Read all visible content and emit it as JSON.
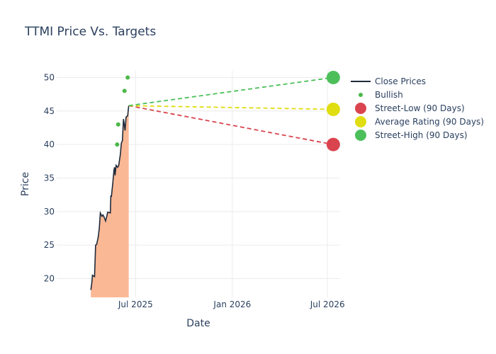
{
  "chart_data": {
    "type": "line",
    "title": "TTMI Price Vs. Targets",
    "xlabel": "Date",
    "ylabel": "Price",
    "x_range": [
      "2025-02-01",
      "2026-07-25"
    ],
    "y_range": [
      17.2,
      51
    ],
    "x_ticks": [
      {
        "label": "Jul 2025",
        "date": "2025-07-01"
      },
      {
        "label": "Jan 2026",
        "date": "2026-01-01"
      },
      {
        "label": "Jul 2026",
        "date": "2026-07-01"
      }
    ],
    "y_ticks": [
      20,
      25,
      30,
      35,
      40,
      45,
      50
    ],
    "grid": true,
    "legend_position": "right",
    "series": [
      {
        "name": "Close Prices",
        "kind": "line-area",
        "line_color": "#1f2a3a",
        "fill_color": "#fbb895",
        "points": [
          [
            "2025-04-07",
            18.3
          ],
          [
            "2025-04-09",
            19.5
          ],
          [
            "2025-04-10",
            20.5
          ],
          [
            "2025-04-14",
            20.3
          ],
          [
            "2025-04-16",
            25.0
          ],
          [
            "2025-04-18",
            25.1
          ],
          [
            "2025-04-21",
            26.2
          ],
          [
            "2025-04-23",
            27.5
          ],
          [
            "2025-04-25",
            29.8
          ],
          [
            "2025-04-28",
            29.3
          ],
          [
            "2025-04-30",
            29.5
          ],
          [
            "2025-05-02",
            29.2
          ],
          [
            "2025-05-05",
            28.6
          ],
          [
            "2025-05-07",
            29.2
          ],
          [
            "2025-05-09",
            29.9
          ],
          [
            "2025-05-14",
            29.8
          ],
          [
            "2025-05-15",
            32.4
          ],
          [
            "2025-05-16",
            32.2
          ],
          [
            "2025-05-19",
            34.5
          ],
          [
            "2025-05-21",
            36.2
          ],
          [
            "2025-05-22",
            36.6
          ],
          [
            "2025-05-23",
            35.4
          ],
          [
            "2025-05-25",
            36.9
          ],
          [
            "2025-05-28",
            36.6
          ],
          [
            "2025-05-30",
            36.9
          ],
          [
            "2025-06-02",
            38.5
          ],
          [
            "2025-06-04",
            40.2
          ],
          [
            "2025-06-06",
            40.6
          ],
          [
            "2025-06-08",
            43.8
          ],
          [
            "2025-06-09",
            43.3
          ],
          [
            "2025-06-11",
            42.1
          ],
          [
            "2025-06-13",
            44.1
          ],
          [
            "2025-06-16",
            44.3
          ],
          [
            "2025-06-18",
            45.8
          ]
        ]
      },
      {
        "name": "Bullish",
        "kind": "markers",
        "color": "#4cb848",
        "points": [
          [
            "2025-05-27",
            40.0
          ],
          [
            "2025-05-29",
            43.0
          ],
          [
            "2025-06-10",
            48.0
          ],
          [
            "2025-06-16",
            50.0
          ]
        ]
      },
      {
        "name": "Street-Low (90 Days)",
        "kind": "target",
        "color": "#d9444e",
        "from": [
          "2025-06-18",
          45.8
        ],
        "to": [
          "2026-07-12",
          40.0
        ]
      },
      {
        "name": "Average Rating (90 Days)",
        "kind": "target",
        "color": "#e0dd10",
        "from": [
          "2025-06-18",
          45.8
        ],
        "to": [
          "2026-07-12",
          45.25
        ]
      },
      {
        "name": "Street-High (90 Days)",
        "kind": "target",
        "color": "#4cbf5a",
        "from": [
          "2025-06-18",
          45.8
        ],
        "to": [
          "2026-07-12",
          50.0
        ]
      }
    ]
  }
}
